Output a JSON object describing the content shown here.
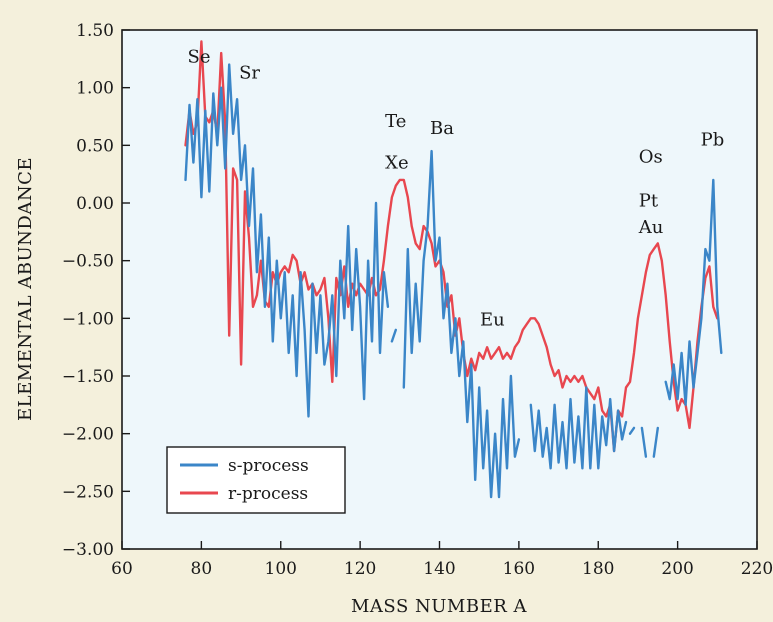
{
  "chart_data": {
    "type": "line",
    "title": "",
    "xlabel": "MASS NUMBER A",
    "ylabel": "ELEMENTAL ABUNDANCE",
    "xlim": [
      60,
      220
    ],
    "ylim": [
      -3.0,
      1.5
    ],
    "xticks": [
      "60",
      "80",
      "100",
      "120",
      "140",
      "160",
      "180",
      "200",
      "220"
    ],
    "yticks": [
      "1.50",
      "1.00",
      "0.50",
      "0.00",
      "−0.50",
      "−1.00",
      "−1.50",
      "−2.00",
      "−2.50",
      "−3.00"
    ],
    "grid": false,
    "legend_position": "bottom-left",
    "colors": {
      "s_process": "#3b86c8",
      "r_process": "#e8474f",
      "plot_bg": "#eef7fb",
      "page_bg": "#f4f0dc"
    },
    "series": [
      {
        "name": "s-process",
        "segments": [
          [
            [
              76,
              0.2
            ],
            [
              77,
              0.85
            ],
            [
              78,
              0.35
            ],
            [
              79,
              0.9
            ],
            [
              80,
              0.05
            ],
            [
              81,
              0.8
            ],
            [
              82,
              0.1
            ],
            [
              83,
              0.95
            ],
            [
              84,
              0.5
            ],
            [
              85,
              1.0
            ],
            [
              86,
              0.3
            ],
            [
              87,
              1.2
            ],
            [
              88,
              0.6
            ],
            [
              89,
              0.9
            ],
            [
              90,
              0.2
            ],
            [
              91,
              0.5
            ],
            [
              92,
              -0.2
            ],
            [
              93,
              0.3
            ],
            [
              94,
              -0.6
            ],
            [
              95,
              -0.1
            ],
            [
              96,
              -0.9
            ],
            [
              97,
              -0.3
            ],
            [
              98,
              -1.2
            ],
            [
              99,
              -0.5
            ],
            [
              100,
              -1.0
            ],
            [
              101,
              -0.6
            ],
            [
              102,
              -1.3
            ],
            [
              103,
              -0.8
            ],
            [
              104,
              -1.5
            ],
            [
              105,
              -0.6
            ],
            [
              106,
              -1.1
            ],
            [
              107,
              -1.85
            ],
            [
              108,
              -0.7
            ],
            [
              109,
              -1.3
            ],
            [
              110,
              -0.8
            ],
            [
              111,
              -1.4
            ],
            [
              112,
              -1.2
            ],
            [
              113,
              -0.8
            ],
            [
              114,
              -1.5
            ],
            [
              115,
              -0.5
            ],
            [
              116,
              -1.0
            ],
            [
              117,
              -0.2
            ],
            [
              118,
              -1.1
            ],
            [
              119,
              -0.4
            ],
            [
              120,
              -0.9
            ],
            [
              121,
              -1.7
            ],
            [
              122,
              -0.5
            ],
            [
              123,
              -1.2
            ],
            [
              124,
              0.0
            ],
            [
              125,
              -1.3
            ],
            [
              126,
              -0.6
            ],
            [
              127,
              -0.9
            ]
          ],
          [
            [
              128,
              -1.2
            ],
            [
              129,
              -1.1
            ]
          ],
          [
            [
              131,
              -1.6
            ],
            [
              132,
              -0.4
            ],
            [
              133,
              -1.3
            ],
            [
              134,
              -0.7
            ],
            [
              135,
              -1.2
            ],
            [
              136,
              -0.5
            ],
            [
              137,
              -0.2
            ],
            [
              138,
              0.45
            ],
            [
              139,
              -0.5
            ],
            [
              140,
              -0.3
            ],
            [
              141,
              -1.0
            ],
            [
              142,
              -0.7
            ],
            [
              143,
              -1.3
            ],
            [
              144,
              -1.0
            ],
            [
              145,
              -1.5
            ],
            [
              146,
              -1.2
            ],
            [
              147,
              -1.9
            ],
            [
              148,
              -1.4
            ],
            [
              149,
              -2.4
            ],
            [
              150,
              -1.6
            ],
            [
              151,
              -2.3
            ],
            [
              152,
              -1.8
            ],
            [
              153,
              -2.55
            ],
            [
              154,
              -2.0
            ],
            [
              155,
              -2.55
            ],
            [
              156,
              -1.7
            ],
            [
              157,
              -2.3
            ],
            [
              158,
              -1.5
            ],
            [
              159,
              -2.2
            ],
            [
              160,
              -2.05
            ]
          ],
          [
            [
              163,
              -1.75
            ],
            [
              164,
              -2.15
            ],
            [
              165,
              -1.8
            ],
            [
              166,
              -2.2
            ],
            [
              167,
              -1.95
            ],
            [
              168,
              -2.3
            ],
            [
              169,
              -1.75
            ],
            [
              170,
              -2.25
            ],
            [
              171,
              -1.9
            ],
            [
              172,
              -2.3
            ],
            [
              173,
              -1.7
            ],
            [
              174,
              -2.25
            ],
            [
              175,
              -1.85
            ],
            [
              176,
              -2.3
            ],
            [
              177,
              -1.6
            ],
            [
              178,
              -2.3
            ],
            [
              179,
              -1.75
            ],
            [
              180,
              -2.3
            ],
            [
              181,
              -1.85
            ],
            [
              182,
              -2.1
            ],
            [
              183,
              -1.7
            ],
            [
              184,
              -2.15
            ],
            [
              185,
              -1.8
            ],
            [
              186,
              -2.05
            ],
            [
              187,
              -1.9
            ]
          ],
          [
            [
              188,
              -2.0
            ],
            [
              189,
              -1.95
            ]
          ],
          [
            [
              191,
              -1.95
            ],
            [
              192,
              -2.2
            ]
          ],
          [
            [
              194,
              -2.2
            ],
            [
              195,
              -1.95
            ]
          ],
          [
            [
              197,
              -1.55
            ],
            [
              198,
              -1.7
            ],
            [
              199,
              -1.4
            ],
            [
              200,
              -1.7
            ],
            [
              201,
              -1.3
            ],
            [
              202,
              -1.75
            ],
            [
              203,
              -1.2
            ],
            [
              204,
              -1.6
            ],
            [
              205,
              -1.3
            ],
            [
              206,
              -1.0
            ],
            [
              207,
              -0.4
            ],
            [
              208,
              -0.5
            ],
            [
              209,
              0.2
            ],
            [
              210,
              -0.9
            ],
            [
              211,
              -1.3
            ]
          ]
        ]
      },
      {
        "name": "r-process",
        "segments": [
          [
            [
              76,
              0.5
            ],
            [
              77,
              0.8
            ],
            [
              78,
              0.6
            ],
            [
              79,
              0.7
            ],
            [
              80,
              1.4
            ],
            [
              81,
              0.75
            ],
            [
              82,
              0.7
            ],
            [
              83,
              0.8
            ],
            [
              84,
              0.6
            ],
            [
              85,
              1.3
            ],
            [
              86,
              0.7
            ],
            [
              87,
              -1.15
            ],
            [
              88,
              0.3
            ],
            [
              89,
              0.2
            ],
            [
              90,
              -1.4
            ],
            [
              91,
              0.1
            ],
            [
              92,
              -0.3
            ],
            [
              93,
              -0.9
            ],
            [
              94,
              -0.8
            ],
            [
              95,
              -0.5
            ],
            [
              96,
              -0.85
            ],
            [
              97,
              -0.9
            ],
            [
              98,
              -0.6
            ],
            [
              99,
              -0.7
            ],
            [
              100,
              -0.6
            ],
            [
              101,
              -0.55
            ],
            [
              102,
              -0.6
            ],
            [
              103,
              -0.45
            ],
            [
              104,
              -0.5
            ],
            [
              105,
              -0.7
            ],
            [
              106,
              -0.6
            ],
            [
              107,
              -0.75
            ],
            [
              108,
              -0.7
            ],
            [
              109,
              -0.8
            ],
            [
              110,
              -0.75
            ],
            [
              111,
              -0.65
            ],
            [
              112,
              -1.0
            ],
            [
              113,
              -1.55
            ],
            [
              114,
              -0.65
            ],
            [
              115,
              -0.8
            ],
            [
              116,
              -0.55
            ],
            [
              117,
              -0.9
            ],
            [
              118,
              -0.7
            ],
            [
              119,
              -0.8
            ],
            [
              120,
              -0.7
            ],
            [
              121,
              -0.75
            ],
            [
              122,
              -0.8
            ],
            [
              123,
              -0.65
            ],
            [
              124,
              -0.8
            ],
            [
              125,
              -0.75
            ],
            [
              126,
              -0.5
            ],
            [
              127,
              -0.2
            ],
            [
              128,
              0.05
            ],
            [
              129,
              0.15
            ],
            [
              130,
              0.2
            ],
            [
              131,
              0.2
            ],
            [
              132,
              0.05
            ],
            [
              133,
              -0.2
            ],
            [
              134,
              -0.35
            ],
            [
              135,
              -0.4
            ],
            [
              136,
              -0.2
            ],
            [
              137,
              -0.25
            ],
            [
              138,
              -0.35
            ],
            [
              139,
              -0.55
            ],
            [
              140,
              -0.5
            ],
            [
              141,
              -0.6
            ],
            [
              142,
              -0.9
            ],
            [
              143,
              -0.8
            ],
            [
              144,
              -1.15
            ],
            [
              145,
              -1.0
            ],
            [
              146,
              -1.3
            ],
            [
              147,
              -1.5
            ],
            [
              148,
              -1.35
            ],
            [
              149,
              -1.45
            ],
            [
              150,
              -1.3
            ],
            [
              151,
              -1.35
            ],
            [
              152,
              -1.25
            ],
            [
              153,
              -1.35
            ],
            [
              154,
              -1.3
            ],
            [
              155,
              -1.25
            ],
            [
              156,
              -1.35
            ],
            [
              157,
              -1.3
            ],
            [
              158,
              -1.35
            ],
            [
              159,
              -1.25
            ],
            [
              160,
              -1.2
            ],
            [
              161,
              -1.1
            ],
            [
              162,
              -1.05
            ],
            [
              163,
              -1.0
            ],
            [
              164,
              -1.0
            ],
            [
              165,
              -1.05
            ],
            [
              166,
              -1.15
            ],
            [
              167,
              -1.25
            ],
            [
              168,
              -1.4
            ],
            [
              169,
              -1.5
            ],
            [
              170,
              -1.45
            ],
            [
              171,
              -1.6
            ],
            [
              172,
              -1.5
            ],
            [
              173,
              -1.55
            ],
            [
              174,
              -1.5
            ],
            [
              175,
              -1.55
            ],
            [
              176,
              -1.5
            ],
            [
              177,
              -1.6
            ],
            [
              178,
              -1.65
            ],
            [
              179,
              -1.7
            ],
            [
              180,
              -1.6
            ],
            [
              181,
              -1.8
            ],
            [
              182,
              -1.85
            ],
            [
              183,
              -1.75
            ],
            [
              184,
              -2.15
            ],
            [
              185,
              -1.8
            ],
            [
              186,
              -1.85
            ],
            [
              187,
              -1.6
            ],
            [
              188,
              -1.55
            ],
            [
              189,
              -1.3
            ],
            [
              190,
              -1.0
            ],
            [
              191,
              -0.8
            ],
            [
              192,
              -0.6
            ],
            [
              193,
              -0.45
            ],
            [
              194,
              -0.4
            ],
            [
              195,
              -0.35
            ],
            [
              196,
              -0.5
            ],
            [
              197,
              -0.8
            ],
            [
              198,
              -1.2
            ],
            [
              199,
              -1.55
            ],
            [
              200,
              -1.8
            ],
            [
              201,
              -1.7
            ],
            [
              202,
              -1.75
            ],
            [
              203,
              -1.95
            ],
            [
              204,
              -1.6
            ],
            [
              205,
              -1.2
            ],
            [
              206,
              -0.9
            ],
            [
              207,
              -0.65
            ],
            [
              208,
              -0.55
            ],
            [
              209,
              -0.9
            ],
            [
              210,
              -1.0
            ]
          ]
        ]
      }
    ],
    "annotations": [
      {
        "text": "Se",
        "x": 76.5,
        "y": 1.22
      },
      {
        "text": "Sr",
        "x": 89.5,
        "y": 1.08
      },
      {
        "text": "Te",
        "x": 126.3,
        "y": 0.66
      },
      {
        "text": "Xe",
        "x": 126.3,
        "y": 0.3
      },
      {
        "text": "Ba",
        "x": 137.6,
        "y": 0.6
      },
      {
        "text": "Eu",
        "x": 150.2,
        "y": -1.06
      },
      {
        "text": "Os",
        "x": 190.2,
        "y": 0.35
      },
      {
        "text": "Pt",
        "x": 190.2,
        "y": -0.03
      },
      {
        "text": "Au",
        "x": 190.2,
        "y": -0.26
      },
      {
        "text": "Pb",
        "x": 205.8,
        "y": 0.5
      }
    ]
  }
}
